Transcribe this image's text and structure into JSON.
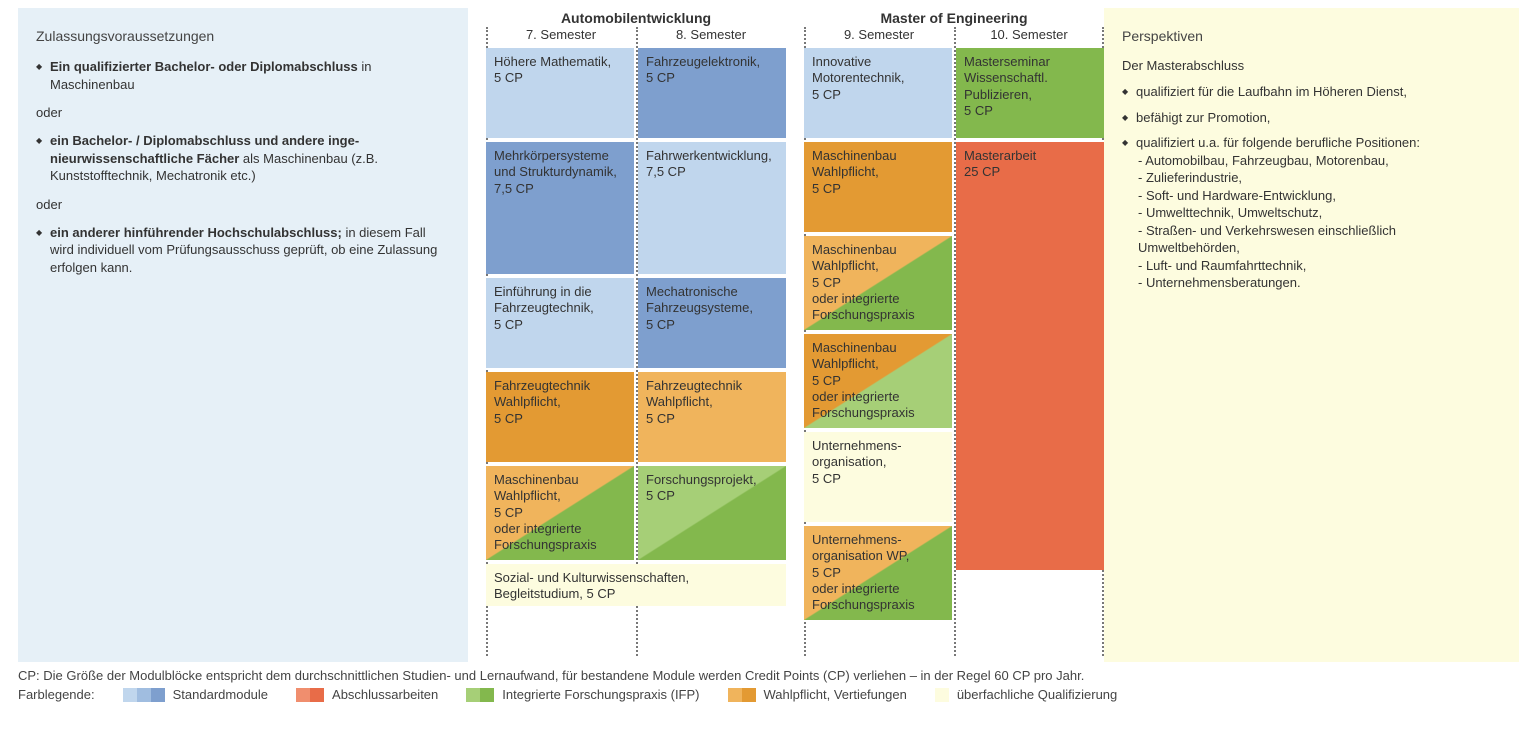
{
  "colors": {
    "leftPanel": "#e6f0f7",
    "rightPanel": "#fdfcdf",
    "std1": "#c0d6ed",
    "std2": "#a0bde0",
    "std3": "#7e9fce",
    "wahl1": "#f0b45c",
    "wahl2": "#e39a33",
    "ifp1": "#a6cf77",
    "ifp2": "#83b84d",
    "abschluss1": "#f08e6e",
    "abschluss2": "#e86c48",
    "uber": "#fdfcdf"
  },
  "layout": {
    "semWidth": 148,
    "gap": 4,
    "midGap": 18,
    "heights": {
      "cp5": 90,
      "cp7_5": 132,
      "cp25": 428,
      "cp5plus": 94,
      "sozial": 42
    }
  },
  "left": {
    "title": "Zulassungsvoraussetzungen",
    "items": [
      {
        "bold": "Ein qualifizierter Bachelor- oder Diplomabschluss",
        "rest": " in Maschinenbau"
      },
      {
        "bold": "ein Bachelor- / Diplomabschluss und andere inge­nieurwissenschaftliche Fächer",
        "rest": " als Maschinenbau (z.B. Kunststofftechnik, Mechatronik etc.)"
      },
      {
        "bold": "ein anderer hinführender Hochschulabschluss;",
        "rest": " in diesem Fall wird individuell vom Prüfungsaus­schuss geprüft, ob eine Zulassung erfolgen kann."
      }
    ],
    "or": "oder"
  },
  "groups": [
    {
      "title": "Automobilentwicklung",
      "sems": [
        "7. Semester",
        "8. Semester"
      ]
    },
    {
      "title": "Master of Engineering",
      "sems": [
        "9. Semester",
        "10. Semester"
      ]
    }
  ],
  "sem7": [
    {
      "t": "Höhere Mathematik,",
      "cp": "5 CP",
      "h": "cp5",
      "bg": "std1"
    },
    {
      "t": "Mehrkörper­systeme und Strukturdynamik,",
      "cp": "7,5 CP",
      "h": "cp7_5",
      "bg": "std3"
    },
    {
      "t": "Einführung in die Fahrzeugtechnik,",
      "cp": "5 CP",
      "h": "cp5",
      "bg": "std1"
    },
    {
      "t": "Fahrzeugtechnik Wahlpflicht,",
      "cp": "5 CP",
      "h": "cp5",
      "bg": "wahl2"
    },
    {
      "t": "Maschinenbau Wahlpflicht,",
      "cp": "5 CP",
      "extra": "oder integrierte Forschungspraxis",
      "h": "cp5plus",
      "split": [
        "wahl1",
        "ifp2"
      ]
    }
  ],
  "sem8": [
    {
      "t": "Fahrzeug­elektronik,",
      "cp": "5 CP",
      "h": "cp5",
      "bg": "std3"
    },
    {
      "t": "Fahrwerk­entwicklung,",
      "cp": "7,5 CP",
      "h": "cp7_5",
      "bg": "std1"
    },
    {
      "t": "Mechatronische Fahrzeugsysteme,",
      "cp": "5 CP",
      "h": "cp5",
      "bg": "std3"
    },
    {
      "t": "Fahrzeugtechnik Wahlpflicht,",
      "cp": "5 CP",
      "h": "cp5",
      "bg": "wahl1"
    },
    {
      "t": "Forschungs­projekt,",
      "cp": "5 CP",
      "h": "cp5plus",
      "split": [
        "ifp1",
        "ifp2"
      ]
    }
  ],
  "sozial": {
    "t": "Sozial- und Kulturwissenschaften, Begleitstudium, 5 CP",
    "h": "sozial",
    "bg": "uber"
  },
  "sem9": [
    {
      "t": "Innovative Motorentechnik,",
      "cp": "5 CP",
      "h": "cp5",
      "bg": "std1"
    },
    {
      "t": "Maschinenbau Wahlpflicht,",
      "cp": "5 CP",
      "h": "cp5",
      "bg": "wahl2"
    },
    {
      "t": "Maschinenbau Wahlpflicht,",
      "cp": "5 CP",
      "extra": "oder integrierte Forschungspraxis",
      "h": "cp5plus",
      "split": [
        "wahl1",
        "ifp2"
      ]
    },
    {
      "t": "Maschinenbau Wahlpflicht,",
      "cp": "5 CP",
      "extra": "oder integrierte Forschungspraxis",
      "h": "cp5plus",
      "split": [
        "wahl2",
        "ifp1"
      ]
    },
    {
      "t": "Unternehmens­organisation,",
      "cp": "5 CP",
      "h": "cp5",
      "bg": "uber"
    },
    {
      "t": "Unternehmens­organisation WP,",
      "cp": "5 CP",
      "extra": "oder integrierte Forschungspraxis",
      "h": "cp5plus",
      "split": [
        "wahl1",
        "ifp2"
      ]
    }
  ],
  "sem10": [
    {
      "t": "Masterseminar Wissenschaftl. Publizieren,",
      "cp": "5 CP",
      "h": "cp5",
      "bg": "ifp2"
    },
    {
      "t": "Masterarbeit",
      "cp": "25 CP",
      "h": "cp25",
      "bg": "abschluss2"
    }
  ],
  "right": {
    "title": "Perspektiven",
    "intro": "Der Masterabschluss",
    "items": [
      "qualifiziert für die Laufbahn im Höheren Dienst,",
      "befähigt zur Promotion,"
    ],
    "itemsLast": {
      "lead": "qualifiziert u.a. für folgende berufliche Positionen:",
      "subs": [
        "Automobilbau, Fahrzeugbau, Motorenbau,",
        "Zulieferindustrie,",
        "Soft- und Hardware-Entwicklung,",
        "Umwelttechnik, Umweltschutz,",
        "Straßen- und Verkehrswesen einschließlich Umweltbehörden,",
        "Luft- und Raumfahrttechnik,",
        "Unternehmensberatungen."
      ]
    }
  },
  "footnote": "CP: Die Größe der Modulblöcke entspricht dem durchschnittlichen Studien- und Lernaufwand, für bestandene Module werden Credit Points (CP) verliehen – in der Regel 60 CP pro Jahr.",
  "legendLabel": "Farblegende:",
  "legend": [
    {
      "label": "Standardmodule",
      "c": [
        "std1",
        "std2",
        "std3"
      ]
    },
    {
      "label": "Abschlussarbeiten",
      "c": [
        "abschluss1",
        "abschluss2"
      ]
    },
    {
      "label": "Integrierte Forschungspraxis (IFP)",
      "c": [
        "ifp1",
        "ifp2"
      ]
    },
    {
      "label": "Wahlpflicht, Vertiefungen",
      "c": [
        "wahl1",
        "wahl2"
      ]
    },
    {
      "label": "überfachliche Qualifizierung",
      "c": [
        "uber"
      ]
    }
  ]
}
